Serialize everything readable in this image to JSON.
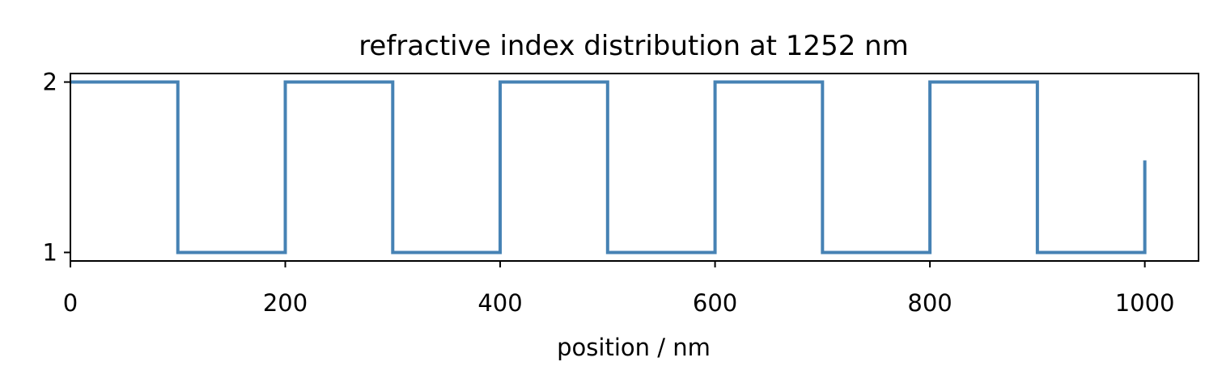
{
  "chart_data": {
    "type": "line",
    "title": "refractive index distribution at  1252 nm",
    "xlabel": "position / nm",
    "ylabel": "",
    "xlim": [
      0,
      1050
    ],
    "ylim": [
      0.95,
      2.05
    ],
    "xticks": [
      0,
      200,
      400,
      600,
      800,
      1000
    ],
    "xtick_labels": [
      "0",
      "200",
      "400",
      "600",
      "800",
      "1000"
    ],
    "yticks": [
      1,
      2
    ],
    "ytick_labels": [
      "1",
      "2"
    ],
    "grid": false,
    "legend": "none",
    "step": true,
    "series": [
      {
        "color": "#4682b4",
        "x": [
          0,
          100,
          100,
          200,
          200,
          300,
          300,
          400,
          400,
          500,
          500,
          600,
          600,
          700,
          700,
          800,
          800,
          900,
          900,
          1000,
          1000
        ],
        "y": [
          2,
          2,
          1,
          1,
          2,
          2,
          1,
          1,
          2,
          2,
          1,
          1,
          2,
          2,
          1,
          1,
          2,
          2,
          1,
          1,
          1.54
        ]
      }
    ]
  }
}
